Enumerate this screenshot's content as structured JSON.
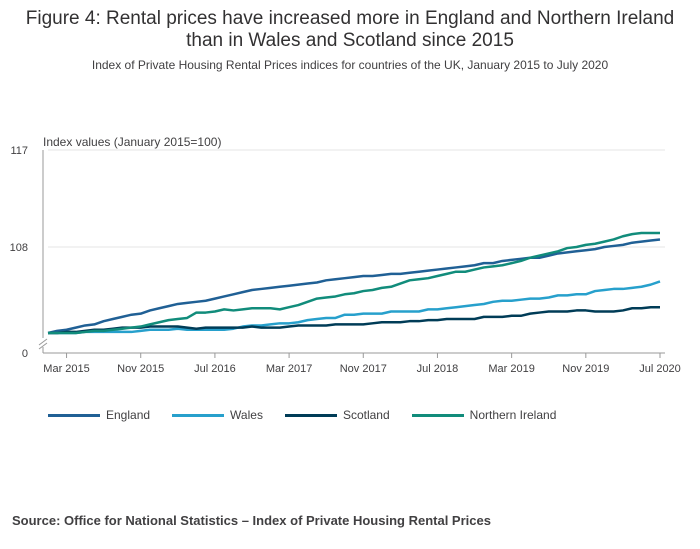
{
  "header": {
    "title": "Figure 4: Rental prices have increased more in England and Northern Ireland than in Wales and Scotland since 2015",
    "subtitle": "Index of Private Housing Rental Prices indices for countries of the UK, January 2015 to July 2020"
  },
  "footer": {
    "source": "Source: Office for National Statistics – Index of Private Housing Rental Prices"
  },
  "chart_data": {
    "type": "line",
    "ylabel": "Index values (January 2015=100)",
    "ylim": [
      100,
      117
    ],
    "yticks": [
      0,
      108,
      117
    ],
    "y_axis_break": true,
    "xtick_labels": [
      "Mar 2015",
      "Nov 2015",
      "Jul 2016",
      "Mar 2017",
      "Nov 2017",
      "Jul 2018",
      "Mar 2019",
      "Nov 2019",
      "Jul 2020"
    ],
    "xtick_month_index": [
      2,
      10,
      18,
      26,
      34,
      42,
      50,
      58,
      66
    ],
    "x_start": "Jan 2015",
    "x_end": "Jul 2020",
    "n_months": 67,
    "grid": true,
    "legend_position": "bottom",
    "series": [
      {
        "name": "England",
        "color": "#206095",
        "values": [
          100.0,
          100.2,
          100.3,
          100.5,
          100.7,
          100.8,
          101.1,
          101.3,
          101.5,
          101.7,
          101.8,
          102.1,
          102.3,
          102.5,
          102.7,
          102.8,
          102.9,
          103.0,
          103.2,
          103.4,
          103.6,
          103.8,
          104.0,
          104.1,
          104.2,
          104.3,
          104.4,
          104.5,
          104.6,
          104.7,
          104.9,
          105.0,
          105.1,
          105.2,
          105.3,
          105.3,
          105.4,
          105.5,
          105.5,
          105.6,
          105.7,
          105.8,
          105.9,
          106.0,
          106.1,
          106.2,
          106.3,
          106.5,
          106.5,
          106.7,
          106.8,
          106.9,
          107.0,
          107.0,
          107.2,
          107.4,
          107.5,
          107.6,
          107.7,
          107.8,
          108.0,
          108.1,
          108.2,
          108.4,
          108.5,
          108.6,
          108.7
        ]
      },
      {
        "name": "Wales",
        "color": "#27A0CC",
        "values": [
          100.0,
          100.0,
          100.0,
          100.0,
          100.1,
          100.1,
          100.1,
          100.1,
          100.1,
          100.1,
          100.2,
          100.3,
          100.3,
          100.3,
          100.4,
          100.3,
          100.3,
          100.3,
          100.3,
          100.3,
          100.4,
          100.6,
          100.7,
          100.7,
          100.8,
          100.9,
          100.9,
          101.0,
          101.2,
          101.3,
          101.4,
          101.4,
          101.7,
          101.7,
          101.8,
          101.8,
          101.8,
          102.0,
          102.0,
          102.0,
          102.0,
          102.2,
          102.2,
          102.3,
          102.4,
          102.5,
          102.6,
          102.7,
          102.9,
          103.0,
          103.0,
          103.1,
          103.2,
          103.2,
          103.3,
          103.5,
          103.5,
          103.6,
          103.6,
          103.9,
          104.0,
          104.1,
          104.1,
          104.2,
          104.3,
          104.5,
          104.8
        ]
      },
      {
        "name": "Scotland",
        "color": "#003C57",
        "values": [
          100.0,
          100.0,
          100.1,
          100.1,
          100.2,
          100.3,
          100.3,
          100.4,
          100.5,
          100.5,
          100.5,
          100.6,
          100.6,
          100.6,
          100.6,
          100.5,
          100.4,
          100.5,
          100.5,
          100.5,
          100.5,
          100.5,
          100.6,
          100.5,
          100.5,
          100.5,
          100.6,
          100.7,
          100.7,
          100.7,
          100.7,
          100.8,
          100.8,
          100.8,
          100.8,
          100.9,
          101.0,
          101.0,
          101.0,
          101.1,
          101.1,
          101.2,
          101.2,
          101.3,
          101.3,
          101.3,
          101.3,
          101.5,
          101.5,
          101.5,
          101.6,
          101.6,
          101.8,
          101.9,
          102.0,
          102.0,
          102.0,
          102.1,
          102.1,
          102.0,
          102.0,
          102.0,
          102.1,
          102.3,
          102.3,
          102.4,
          102.4
        ]
      },
      {
        "name": "Northern Ireland",
        "color": "#118C7B",
        "values": [
          100.0,
          100.0,
          100.0,
          100.0,
          100.1,
          100.2,
          100.2,
          100.3,
          100.4,
          100.5,
          100.6,
          100.8,
          101.0,
          101.2,
          101.3,
          101.4,
          101.9,
          101.9,
          102.0,
          102.2,
          102.1,
          102.2,
          102.3,
          102.3,
          102.3,
          102.2,
          102.4,
          102.6,
          102.9,
          103.2,
          103.3,
          103.4,
          103.6,
          103.7,
          103.9,
          104.0,
          104.2,
          104.3,
          104.6,
          104.9,
          105.0,
          105.1,
          105.3,
          105.5,
          105.7,
          105.7,
          105.9,
          106.1,
          106.2,
          106.3,
          106.5,
          106.7,
          107.0,
          107.2,
          107.4,
          107.6,
          107.9,
          108.0,
          108.2,
          108.3,
          108.5,
          108.7,
          109.0,
          109.2,
          109.3,
          109.3,
          109.3
        ]
      }
    ]
  }
}
